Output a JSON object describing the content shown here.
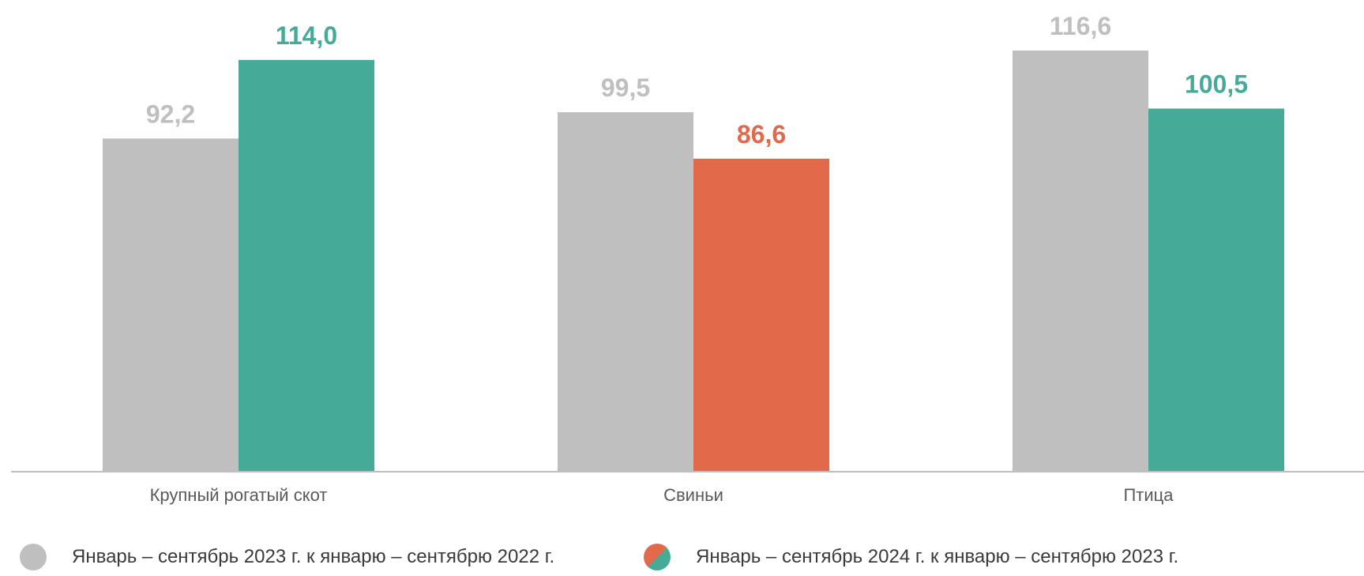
{
  "chart_data": {
    "type": "bar",
    "title": "",
    "xlabel": "",
    "ylabel": "",
    "ylim": [
      0,
      120
    ],
    "grid": false,
    "legend_position": "bottom",
    "categories": [
      "Крупный рогатый скот",
      "Свиньи",
      "Птица"
    ],
    "series": [
      {
        "name": "Январь – сентябрь 2023 г. к январю – сентябрю 2022 г.",
        "values": [
          92.2,
          99.5,
          116.6
        ],
        "labels": [
          "92,2",
          "99,5",
          "116,6"
        ],
        "colors": [
          "#bfbfbf",
          "#bfbfbf",
          "#bfbfbf"
        ],
        "label_color": "#bfbfbf"
      },
      {
        "name": "Январь – сентябрь 2024 г. к январю – сентябрю 2023 г.",
        "values": [
          114.0,
          86.6,
          100.5
        ],
        "labels": [
          "114,0",
          "86,6",
          "100,5"
        ],
        "colors": [
          "#46aa98",
          "#e2694a",
          "#46aa98"
        ]
      }
    ]
  },
  "legend": [
    {
      "label": "Январь – сентябрь 2023 г. к январю – сентябрю 2022 г.",
      "marker": "gray-circle-icon"
    },
    {
      "label": "Январь – сентябрь 2024 г. к январю – сентябрю 2023 г.",
      "marker": "orange-teal-split-circle-icon"
    }
  ],
  "colors": {
    "gray": "#bfbfbf",
    "teal": "#46aa98",
    "orange": "#e2694a",
    "axis": "#bfbfbf"
  }
}
